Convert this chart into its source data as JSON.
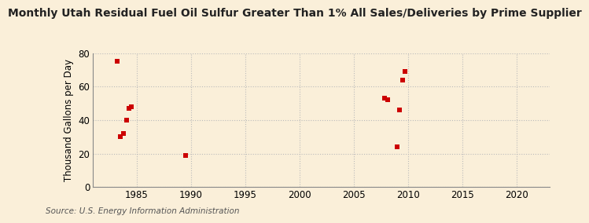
{
  "title": "Monthly Utah Residual Fuel Oil Sulfur Greater Than 1% All Sales/Deliveries by Prime Supplier",
  "ylabel": "Thousand Gallons per Day",
  "source": "Source: U.S. Energy Information Administration",
  "background_color": "#faefd9",
  "scatter_color": "#cc0000",
  "xlim": [
    1981,
    2023
  ],
  "ylim": [
    0,
    80
  ],
  "xticks": [
    1985,
    1990,
    1995,
    2000,
    2005,
    2010,
    2015,
    2020
  ],
  "yticks": [
    0,
    20,
    40,
    60,
    80
  ],
  "x_data": [
    1983.2,
    1983.5,
    1983.8,
    1984.1,
    1984.3,
    1984.5,
    1989.5,
    2007.8,
    2008.1,
    2009.0,
    2009.2,
    2009.5,
    2009.7
  ],
  "y_data": [
    75,
    30,
    32,
    40,
    47,
    48,
    19,
    53,
    52,
    24,
    46,
    64,
    69
  ],
  "marker": "s",
  "marker_size": 18,
  "grid_color": "#bbbbbb",
  "grid_linestyle": ":",
  "title_fontsize": 10,
  "label_fontsize": 8.5,
  "tick_fontsize": 8.5,
  "source_fontsize": 7.5
}
